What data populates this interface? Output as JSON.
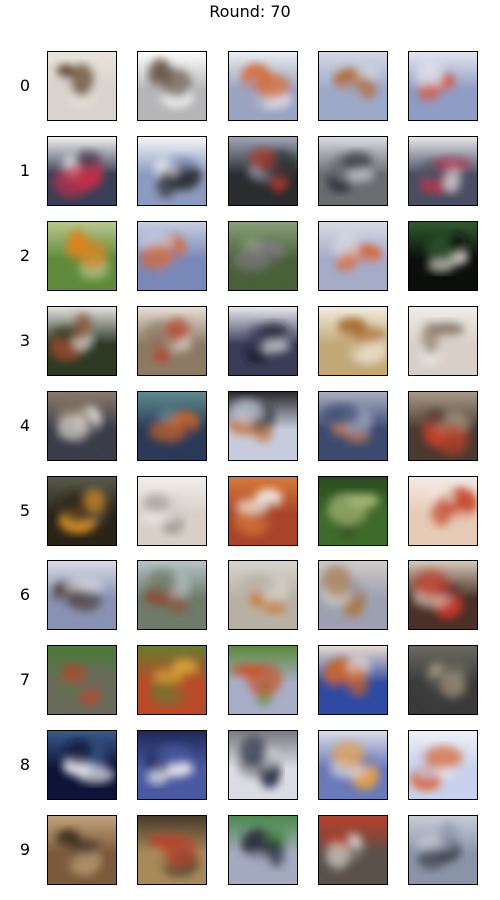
{
  "title": "Round: 70",
  "rows": [
    {
      "label": "0",
      "tiles": [
        {
          "bg": "#d8d3cc",
          "accent": "#5a3a20",
          "hint": "#e9e4dc"
        },
        {
          "bg": "#b6b6b8",
          "accent": "#6a5848",
          "hint": "#ffffff"
        },
        {
          "bg": "#9aa3c0",
          "accent": "#d9682a",
          "hint": "#ebecf0"
        },
        {
          "bg": "#9ca9c9",
          "accent": "#b36a2a",
          "hint": "#d6d9e3"
        },
        {
          "bg": "#8f9cc4",
          "accent": "#d5502a",
          "hint": "#e4e6ee"
        }
      ]
    },
    {
      "label": "1",
      "tiles": [
        {
          "bg": "#3a3f58",
          "accent": "#c23048",
          "hint": "#f1f1f1"
        },
        {
          "bg": "#8c9bc0",
          "accent": "#2c2e34",
          "hint": "#f6f6f8"
        },
        {
          "bg": "#2a2c30",
          "accent": "#b23a2a",
          "hint": "#9fa6b8"
        },
        {
          "bg": "#6a6c70",
          "accent": "#2d3038",
          "hint": "#d8dbe2"
        },
        {
          "bg": "#4a4e62",
          "accent": "#b3364e",
          "hint": "#e6e6ea"
        }
      ]
    },
    {
      "label": "2",
      "tiles": [
        {
          "bg": "#5f8a3a",
          "accent": "#e0821e",
          "hint": "#b8c98e"
        },
        {
          "bg": "#7888b8",
          "accent": "#d86a32",
          "hint": "#c8cde0"
        },
        {
          "bg": "#4a6038",
          "accent": "#7e7a80",
          "hint": "#8aa07a"
        },
        {
          "bg": "#a4acc8",
          "accent": "#d8622a",
          "hint": "#d8dae4"
        },
        {
          "bg": "#0c0e0c",
          "accent": "#d8d2c6",
          "hint": "#2f5a2f"
        }
      ]
    },
    {
      "label": "3",
      "tiles": [
        {
          "bg": "#2c3a24",
          "accent": "#8a4a2a",
          "hint": "#e4e2de"
        },
        {
          "bg": "#8c7a64",
          "accent": "#b8402a",
          "hint": "#e8ded4"
        },
        {
          "bg": "#3a3c58",
          "accent": "#1e2030",
          "hint": "#e8e8ee"
        },
        {
          "bg": "#c2a878",
          "accent": "#a86a2e",
          "hint": "#f2ecde"
        },
        {
          "bg": "#d8d0c8",
          "accent": "#8a7a6a",
          "hint": "#f0ece8"
        }
      ]
    },
    {
      "label": "4",
      "tiles": [
        {
          "bg": "#3a3c4a",
          "accent": "#e2dcd4",
          "hint": "#8a7a6a"
        },
        {
          "bg": "#2a3a58",
          "accent": "#c8642a",
          "hint": "#5e8a8e"
        },
        {
          "bg": "#c6ccdc",
          "accent": "#c27a4a",
          "hint": "#2a2a2e"
        },
        {
          "bg": "#3c4a70",
          "accent": "#b87a5a",
          "hint": "#a8aec4"
        },
        {
          "bg": "#4a3a30",
          "accent": "#c2402a",
          "hint": "#a89a88"
        }
      ]
    },
    {
      "label": "5",
      "tiles": [
        {
          "bg": "#2a2418",
          "accent": "#d8922a",
          "hint": "#5a5a4a"
        },
        {
          "bg": "#d8d0c8",
          "accent": "#a09a94",
          "hint": "#f2eeea"
        },
        {
          "bg": "#a8442a",
          "accent": "#f0e8e0",
          "hint": "#d87a3a"
        },
        {
          "bg": "#3e6a2a",
          "accent": "#a8b878",
          "hint": "#2a4a1e"
        },
        {
          "bg": "#e6cbb6",
          "accent": "#c64a2a",
          "hint": "#f4eae2"
        }
      ]
    },
    {
      "label": "6",
      "tiles": [
        {
          "bg": "#8a92b4",
          "accent": "#4a3c36",
          "hint": "#d8dae4"
        },
        {
          "bg": "#6e7a6a",
          "accent": "#8a4a2a",
          "hint": "#b8c4c8"
        },
        {
          "bg": "#b8b0a4",
          "accent": "#c8762a",
          "hint": "#d8d4cc"
        },
        {
          "bg": "#9ca0b0",
          "accent": "#a8784a",
          "hint": "#d0ccc8"
        },
        {
          "bg": "#4a3028",
          "accent": "#c83a2a",
          "hint": "#d8c8b8"
        }
      ]
    },
    {
      "label": "7",
      "tiles": [
        {
          "bg": "#6a6a5a",
          "accent": "#b8442a",
          "hint": "#4a7a3a"
        },
        {
          "bg": "#b84a2a",
          "accent": "#d8a23a",
          "hint": "#6a7a2e"
        },
        {
          "bg": "#a8aec8",
          "accent": "#c8542a",
          "hint": "#5a8a3a"
        },
        {
          "bg": "#2e4aa2",
          "accent": "#c8642a",
          "hint": "#e8dcd0"
        },
        {
          "bg": "#3a3a3a",
          "accent": "#a89a80",
          "hint": "#6a6a60"
        }
      ]
    },
    {
      "label": "8",
      "tiles": [
        {
          "bg": "#0e1438",
          "accent": "#e8e8ee",
          "hint": "#3a5a8a"
        },
        {
          "bg": "#4a5aa2",
          "accent": "#f0f0f2",
          "hint": "#1e2a5a"
        },
        {
          "bg": "#dcdde4",
          "accent": "#2c3448",
          "hint": "#7a7a84"
        },
        {
          "bg": "#6a7ab8",
          "accent": "#e8a24a",
          "hint": "#d8dce8"
        },
        {
          "bg": "#c8d2ec",
          "accent": "#d8622a",
          "hint": "#eef0f6"
        }
      ]
    },
    {
      "label": "9",
      "tiles": [
        {
          "bg": "#7a5a3a",
          "accent": "#3a2a1e",
          "hint": "#c2a27a"
        },
        {
          "bg": "#a88a5a",
          "accent": "#b8402a",
          "hint": "#4a3a2a"
        },
        {
          "bg": "#a4aac0",
          "accent": "#2a2e3c",
          "hint": "#4a8a4a"
        },
        {
          "bg": "#5a5048",
          "accent": "#d8d4cc",
          "hint": "#b8402a"
        },
        {
          "bg": "#8a94a8",
          "accent": "#3a3e4a",
          "hint": "#c8ccd8"
        }
      ]
    }
  ]
}
